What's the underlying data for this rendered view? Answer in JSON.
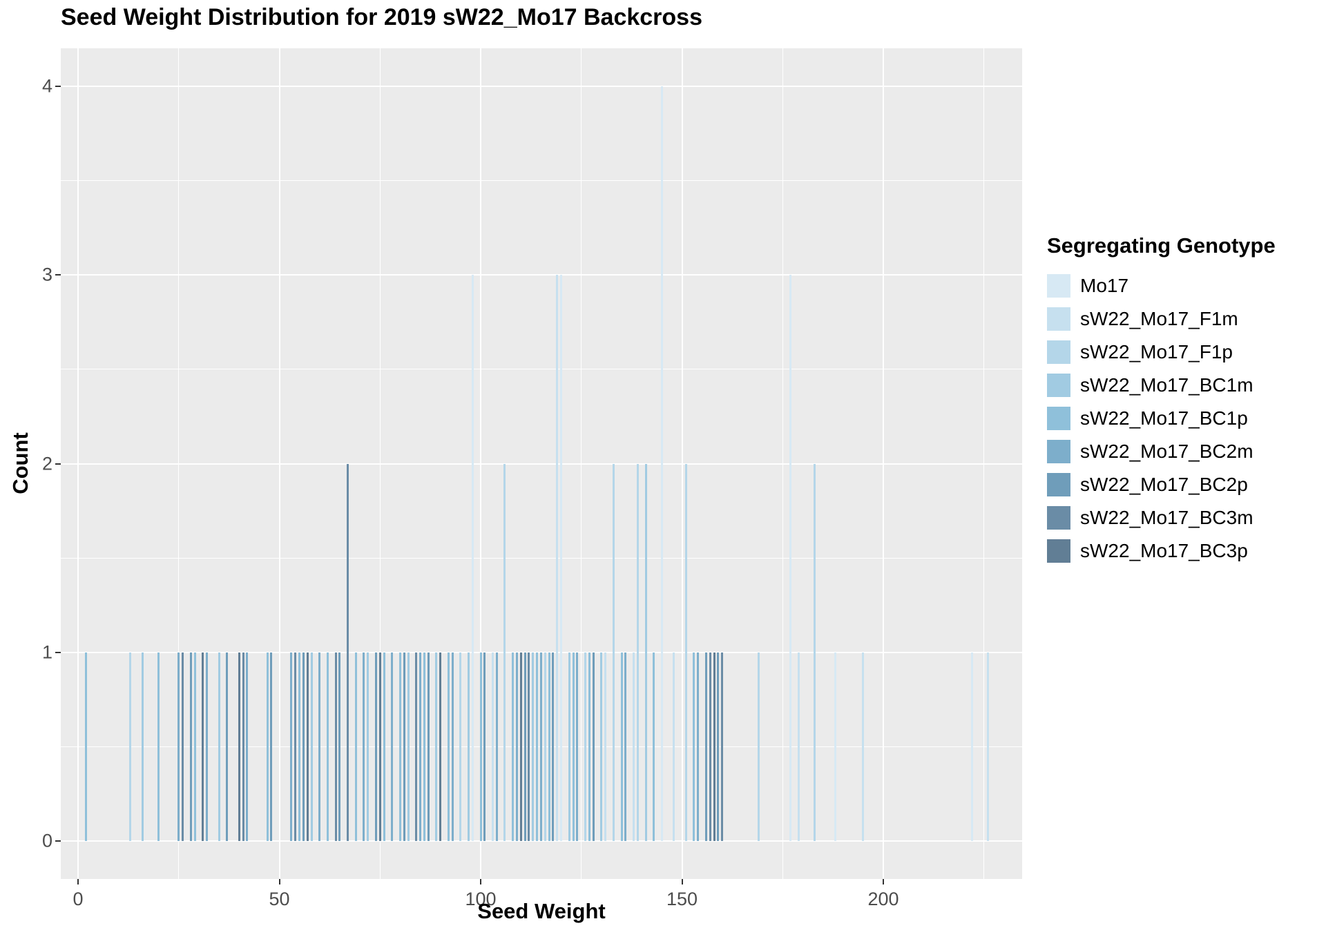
{
  "chart_data": {
    "type": "bar",
    "title": "Seed Weight Distribution for 2019 sW22_Mo17 Backcross",
    "xlabel": "Seed Weight",
    "ylabel": "Count",
    "xlim": [
      -4,
      235
    ],
    "ylim": [
      -0.2,
      4.2
    ],
    "x_ticks": [
      0,
      50,
      100,
      150,
      200
    ],
    "x_minor_ticks": [
      25,
      75,
      125,
      175,
      225
    ],
    "y_ticks": [
      0,
      1,
      2,
      3,
      4
    ],
    "y_minor_ticks": [
      0.5,
      1.5,
      2.5,
      3.5
    ],
    "grid": true,
    "panel_background": "#EBEBEB",
    "gridline_color": "#FFFFFF",
    "legend_title": "Segregating Genotype",
    "legend_position": "right",
    "genotypes": [
      {
        "name": "Mo17",
        "color": "#D7E9F4"
      },
      {
        "name": "sW22_Mo17_F1m",
        "color": "#C6E0EF"
      },
      {
        "name": "sW22_Mo17_F1p",
        "color": "#B4D6E9"
      },
      {
        "name": "sW22_Mo17_BC1m",
        "color": "#A1CBE2"
      },
      {
        "name": "sW22_Mo17_BC1p",
        "color": "#8FC0DA"
      },
      {
        "name": "sW22_Mo17_BC2m",
        "color": "#7DAECB"
      },
      {
        "name": "sW22_Mo17_BC2p",
        "color": "#6F9DBA"
      },
      {
        "name": "sW22_Mo17_BC3m",
        "color": "#6A8CA6"
      },
      {
        "name": "sW22_Mo17_BC3p",
        "color": "#617E95"
      }
    ],
    "bars": [
      {
        "x": 2,
        "count": 1,
        "genotype": "sW22_Mo17_BC1p"
      },
      {
        "x": 13,
        "count": 1,
        "genotype": "sW22_Mo17_F1p"
      },
      {
        "x": 16,
        "count": 1,
        "genotype": "sW22_Mo17_BC1m"
      },
      {
        "x": 20,
        "count": 1,
        "genotype": "sW22_Mo17_BC1p"
      },
      {
        "x": 25,
        "count": 1,
        "genotype": "sW22_Mo17_BC2m"
      },
      {
        "x": 26,
        "count": 1,
        "genotype": "sW22_Mo17_BC3m"
      },
      {
        "x": 28,
        "count": 1,
        "genotype": "sW22_Mo17_BC2p"
      },
      {
        "x": 29,
        "count": 1,
        "genotype": "sW22_Mo17_BC1p"
      },
      {
        "x": 31,
        "count": 1,
        "genotype": "sW22_Mo17_BC3p"
      },
      {
        "x": 32,
        "count": 1,
        "genotype": "sW22_Mo17_BC2m"
      },
      {
        "x": 35,
        "count": 1,
        "genotype": "sW22_Mo17_BC1m"
      },
      {
        "x": 37,
        "count": 1,
        "genotype": "sW22_Mo17_BC2p"
      },
      {
        "x": 40,
        "count": 1,
        "genotype": "sW22_Mo17_BC3p"
      },
      {
        "x": 41,
        "count": 1,
        "genotype": "sW22_Mo17_BC3m"
      },
      {
        "x": 42,
        "count": 1,
        "genotype": "sW22_Mo17_BC2m"
      },
      {
        "x": 47,
        "count": 1,
        "genotype": "sW22_Mo17_BC1p"
      },
      {
        "x": 48,
        "count": 1,
        "genotype": "sW22_Mo17_BC2p"
      },
      {
        "x": 53,
        "count": 1,
        "genotype": "sW22_Mo17_BC2m"
      },
      {
        "x": 54,
        "count": 1,
        "genotype": "sW22_Mo17_BC3m"
      },
      {
        "x": 55,
        "count": 1,
        "genotype": "sW22_Mo17_BC1p"
      },
      {
        "x": 56,
        "count": 1,
        "genotype": "sW22_Mo17_BC2p"
      },
      {
        "x": 57,
        "count": 1,
        "genotype": "sW22_Mo17_BC3p"
      },
      {
        "x": 58,
        "count": 1,
        "genotype": "sW22_Mo17_BC1m"
      },
      {
        "x": 60,
        "count": 1,
        "genotype": "sW22_Mo17_BC2m"
      },
      {
        "x": 62,
        "count": 1,
        "genotype": "sW22_Mo17_BC1p"
      },
      {
        "x": 64,
        "count": 1,
        "genotype": "sW22_Mo17_BC3m"
      },
      {
        "x": 65,
        "count": 1,
        "genotype": "sW22_Mo17_BC2p"
      },
      {
        "x": 67,
        "count": 2,
        "genotype": "sW22_Mo17_BC3m"
      },
      {
        "x": 69,
        "count": 1,
        "genotype": "sW22_Mo17_BC1p"
      },
      {
        "x": 71,
        "count": 1,
        "genotype": "sW22_Mo17_BC2m"
      },
      {
        "x": 72,
        "count": 1,
        "genotype": "sW22_Mo17_BC1m"
      },
      {
        "x": 74,
        "count": 1,
        "genotype": "sW22_Mo17_BC2p"
      },
      {
        "x": 75,
        "count": 1,
        "genotype": "sW22_Mo17_BC3p"
      },
      {
        "x": 76,
        "count": 1,
        "genotype": "sW22_Mo17_BC1p"
      },
      {
        "x": 78,
        "count": 1,
        "genotype": "sW22_Mo17_BC2m"
      },
      {
        "x": 80,
        "count": 1,
        "genotype": "sW22_Mo17_BC1p"
      },
      {
        "x": 81,
        "count": 1,
        "genotype": "sW22_Mo17_BC2p"
      },
      {
        "x": 82,
        "count": 1,
        "genotype": "sW22_Mo17_BC1m"
      },
      {
        "x": 84,
        "count": 1,
        "genotype": "sW22_Mo17_BC3m"
      },
      {
        "x": 85,
        "count": 1,
        "genotype": "sW22_Mo17_BC2m"
      },
      {
        "x": 86,
        "count": 1,
        "genotype": "sW22_Mo17_BC1p"
      },
      {
        "x": 87,
        "count": 1,
        "genotype": "sW22_Mo17_BC2p"
      },
      {
        "x": 89,
        "count": 1,
        "genotype": "sW22_Mo17_BC1m"
      },
      {
        "x": 90,
        "count": 1,
        "genotype": "sW22_Mo17_BC3p"
      },
      {
        "x": 92,
        "count": 1,
        "genotype": "sW22_Mo17_BC1p"
      },
      {
        "x": 93,
        "count": 1,
        "genotype": "sW22_Mo17_BC2m"
      },
      {
        "x": 95,
        "count": 1,
        "genotype": "sW22_Mo17_F1p"
      },
      {
        "x": 97,
        "count": 1,
        "genotype": "sW22_Mo17_BC1m"
      },
      {
        "x": 98,
        "count": 3,
        "genotype": "Mo17"
      },
      {
        "x": 100,
        "count": 1,
        "genotype": "sW22_Mo17_BC1p"
      },
      {
        "x": 101,
        "count": 1,
        "genotype": "sW22_Mo17_BC2p"
      },
      {
        "x": 103,
        "count": 1,
        "genotype": "sW22_Mo17_F1m"
      },
      {
        "x": 104,
        "count": 1,
        "genotype": "sW22_Mo17_BC2m"
      },
      {
        "x": 106,
        "count": 2,
        "genotype": "sW22_Mo17_F1p"
      },
      {
        "x": 108,
        "count": 1,
        "genotype": "sW22_Mo17_BC1p"
      },
      {
        "x": 109,
        "count": 1,
        "genotype": "sW22_Mo17_BC2m"
      },
      {
        "x": 110,
        "count": 1,
        "genotype": "sW22_Mo17_BC3p"
      },
      {
        "x": 111,
        "count": 1,
        "genotype": "sW22_Mo17_BC2p"
      },
      {
        "x": 112,
        "count": 1,
        "genotype": "sW22_Mo17_BC3m"
      },
      {
        "x": 113,
        "count": 1,
        "genotype": "sW22_Mo17_BC1m"
      },
      {
        "x": 114,
        "count": 1,
        "genotype": "sW22_Mo17_BC1p"
      },
      {
        "x": 115,
        "count": 1,
        "genotype": "sW22_Mo17_BC2m"
      },
      {
        "x": 116,
        "count": 1,
        "genotype": "sW22_Mo17_F1p"
      },
      {
        "x": 117,
        "count": 1,
        "genotype": "sW22_Mo17_BC1p"
      },
      {
        "x": 118,
        "count": 1,
        "genotype": "sW22_Mo17_BC2p"
      },
      {
        "x": 119,
        "count": 3,
        "genotype": "sW22_Mo17_F1m"
      },
      {
        "x": 120,
        "count": 3,
        "genotype": "Mo17"
      },
      {
        "x": 122,
        "count": 1,
        "genotype": "sW22_Mo17_BC1m"
      },
      {
        "x": 123,
        "count": 1,
        "genotype": "sW22_Mo17_BC1p"
      },
      {
        "x": 124,
        "count": 1,
        "genotype": "sW22_Mo17_BC2m"
      },
      {
        "x": 126,
        "count": 1,
        "genotype": "sW22_Mo17_F1p"
      },
      {
        "x": 127,
        "count": 1,
        "genotype": "sW22_Mo17_BC1p"
      },
      {
        "x": 128,
        "count": 1,
        "genotype": "sW22_Mo17_BC2p"
      },
      {
        "x": 130,
        "count": 1,
        "genotype": "sW22_Mo17_BC1m"
      },
      {
        "x": 131,
        "count": 1,
        "genotype": "sW22_Mo17_F1m"
      },
      {
        "x": 133,
        "count": 2,
        "genotype": "sW22_Mo17_F1p"
      },
      {
        "x": 135,
        "count": 1,
        "genotype": "sW22_Mo17_BC1p"
      },
      {
        "x": 136,
        "count": 1,
        "genotype": "sW22_Mo17_BC2m"
      },
      {
        "x": 138,
        "count": 1,
        "genotype": "sW22_Mo17_F1m"
      },
      {
        "x": 139,
        "count": 2,
        "genotype": "sW22_Mo17_F1p"
      },
      {
        "x": 141,
        "count": 2,
        "genotype": "sW22_Mo17_BC1m"
      },
      {
        "x": 143,
        "count": 1,
        "genotype": "sW22_Mo17_BC1p"
      },
      {
        "x": 145,
        "count": 4,
        "genotype": "Mo17"
      },
      {
        "x": 148,
        "count": 1,
        "genotype": "sW22_Mo17_F1m"
      },
      {
        "x": 151,
        "count": 2,
        "genotype": "sW22_Mo17_F1p"
      },
      {
        "x": 153,
        "count": 1,
        "genotype": "sW22_Mo17_BC1p"
      },
      {
        "x": 154,
        "count": 1,
        "genotype": "sW22_Mo17_BC2m"
      },
      {
        "x": 156,
        "count": 1,
        "genotype": "sW22_Mo17_BC2p"
      },
      {
        "x": 157,
        "count": 1,
        "genotype": "sW22_Mo17_BC3m"
      },
      {
        "x": 158,
        "count": 1,
        "genotype": "sW22_Mo17_BC3p"
      },
      {
        "x": 159,
        "count": 1,
        "genotype": "sW22_Mo17_BC2p"
      },
      {
        "x": 160,
        "count": 1,
        "genotype": "sW22_Mo17_BC3m"
      },
      {
        "x": 169,
        "count": 1,
        "genotype": "sW22_Mo17_F1p"
      },
      {
        "x": 177,
        "count": 3,
        "genotype": "Mo17"
      },
      {
        "x": 179,
        "count": 1,
        "genotype": "sW22_Mo17_F1m"
      },
      {
        "x": 183,
        "count": 2,
        "genotype": "sW22_Mo17_F1p"
      },
      {
        "x": 188,
        "count": 1,
        "genotype": "Mo17"
      },
      {
        "x": 195,
        "count": 1,
        "genotype": "sW22_Mo17_F1m"
      },
      {
        "x": 222,
        "count": 1,
        "genotype": "Mo17"
      },
      {
        "x": 226,
        "count": 1,
        "genotype": "sW22_Mo17_F1m"
      }
    ]
  }
}
